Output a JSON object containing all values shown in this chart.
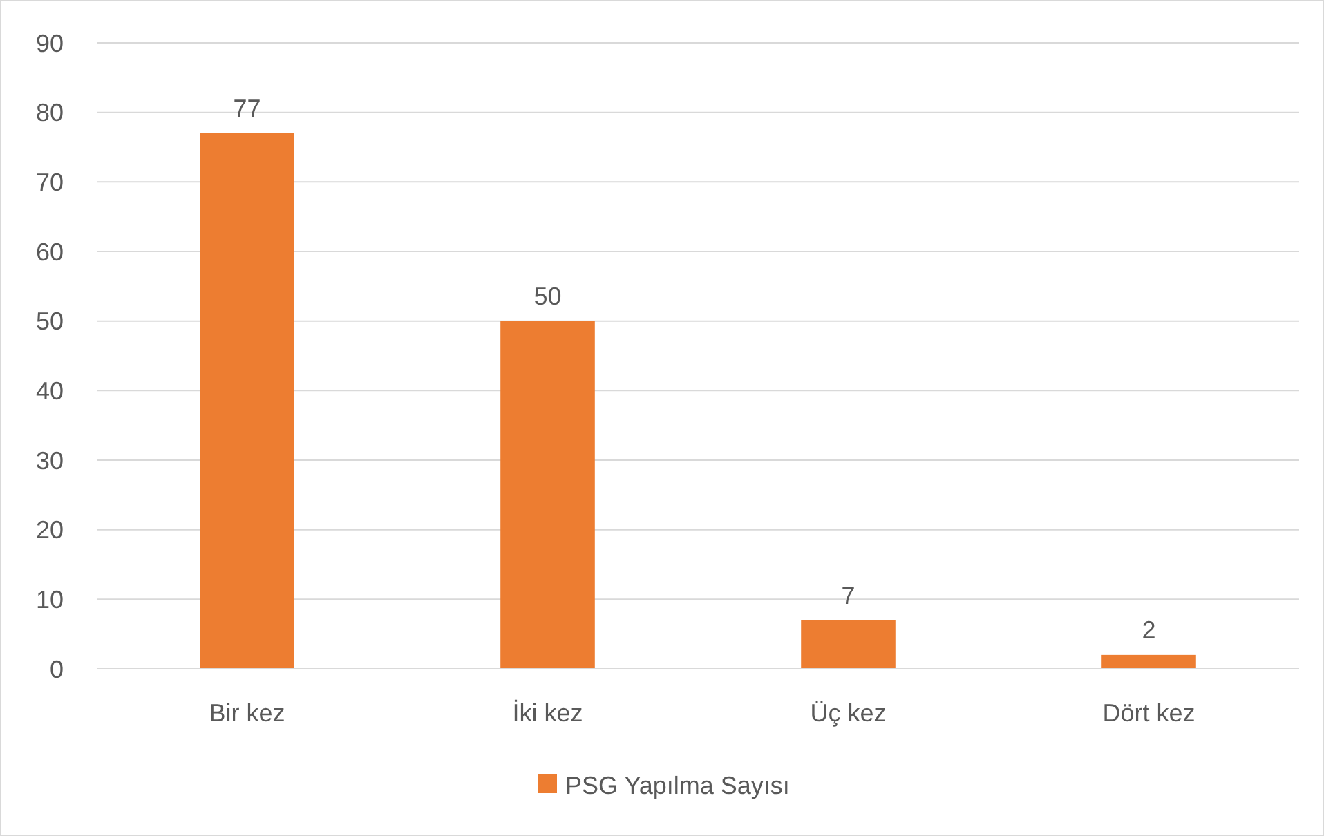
{
  "chart_data": {
    "type": "bar",
    "categories": [
      "Bir kez",
      "İki kez",
      "Üç kez",
      "Dört kez"
    ],
    "series": [
      {
        "name": "PSG Yapılma Sayısı",
        "color": "#ed7d31",
        "values": [
          77,
          50,
          7,
          2
        ]
      }
    ],
    "ylim": [
      0,
      90
    ],
    "yticks": [
      0,
      10,
      20,
      30,
      40,
      50,
      60,
      70,
      80,
      90
    ],
    "grid": "y",
    "legend": "bottom",
    "data_labels": true
  }
}
